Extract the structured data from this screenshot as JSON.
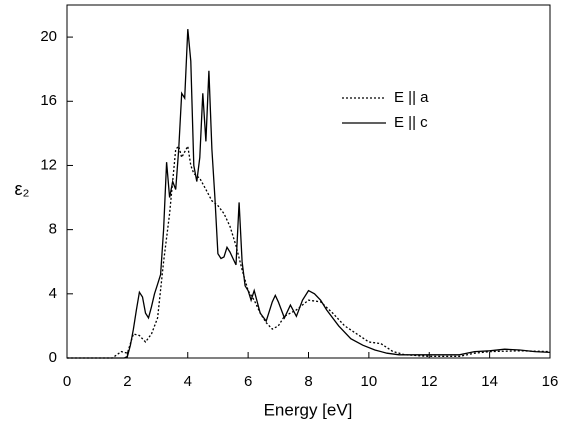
{
  "chart_data": {
    "type": "line",
    "x_label": "Energy [eV]",
    "y_label": "ε₂",
    "xlim": [
      0,
      16
    ],
    "ylim": [
      0,
      22
    ],
    "xticks": [
      0,
      2,
      4,
      6,
      8,
      10,
      12,
      14,
      16
    ],
    "yticks": [
      0,
      4,
      8,
      12,
      16,
      20
    ],
    "legend": "upper right",
    "series": [
      {
        "name": "E || a",
        "color": "#000000",
        "dash": "dotted",
        "x": [
          0,
          1.5,
          1.8,
          2.0,
          2.2,
          2.4,
          2.6,
          2.8,
          3.0,
          3.2,
          3.4,
          3.6,
          3.7,
          3.8,
          4.0,
          4.1,
          4.2,
          4.4,
          4.6,
          4.8,
          5.0,
          5.2,
          5.4,
          5.6,
          5.8,
          6.0,
          6.2,
          6.4,
          6.6,
          6.8,
          7.0,
          7.2,
          7.6,
          8.0,
          8.4,
          8.8,
          9.2,
          9.6,
          10.0,
          10.4,
          10.8,
          11.2,
          12,
          13,
          13.5,
          14,
          15,
          16
        ],
        "values": [
          0,
          0,
          0.4,
          0.3,
          1.5,
          1.4,
          1.0,
          1.5,
          2.5,
          6,
          9,
          13,
          13.2,
          12.5,
          13.2,
          12,
          11.5,
          11.2,
          10.5,
          9.8,
          9.5,
          9,
          8.2,
          7,
          5.5,
          4.2,
          3.6,
          2.8,
          2.2,
          1.8,
          2,
          2.6,
          3,
          3.6,
          3.5,
          2.8,
          2,
          1.5,
          1.0,
          0.9,
          0.4,
          0.2,
          0.1,
          0.1,
          0.3,
          0.4,
          0.45,
          0.4
        ]
      },
      {
        "name": "E || c",
        "color": "#000000",
        "dash": "solid",
        "x": [
          0,
          1.9,
          2.0,
          2.1,
          2.2,
          2.3,
          2.4,
          2.5,
          2.6,
          2.7,
          2.8,
          2.9,
          3.0,
          3.1,
          3.2,
          3.3,
          3.4,
          3.5,
          3.6,
          3.7,
          3.8,
          3.9,
          4.0,
          4.1,
          4.2,
          4.3,
          4.4,
          4.5,
          4.6,
          4.7,
          4.8,
          4.9,
          5.0,
          5.1,
          5.2,
          5.3,
          5.4,
          5.5,
          5.6,
          5.7,
          5.8,
          5.9,
          6.0,
          6.1,
          6.2,
          6.4,
          6.6,
          6.8,
          6.9,
          7.0,
          7.2,
          7.4,
          7.6,
          7.8,
          8.0,
          8.2,
          8.4,
          8.6,
          9.0,
          9.4,
          9.8,
          10.2,
          10.6,
          11,
          12,
          13,
          13.5,
          14,
          14.5,
          15,
          15.5,
          16
        ],
        "values": [
          0,
          0,
          0.1,
          0.8,
          1.8,
          3,
          4.1,
          3.8,
          2.8,
          2.5,
          3.2,
          4,
          4.6,
          5.2,
          8,
          12.2,
          10,
          11,
          10.5,
          13,
          16.5,
          16.2,
          20.5,
          18.5,
          12,
          11,
          12.5,
          16.5,
          13.5,
          17.9,
          13,
          10,
          6.5,
          6.2,
          6.3,
          6.9,
          6.6,
          6.2,
          5.8,
          9.7,
          6,
          4.5,
          4.2,
          3.6,
          4.2,
          2.8,
          2.3,
          3.5,
          3.9,
          3.5,
          2.5,
          3.3,
          2.6,
          3.6,
          4.2,
          4,
          3.6,
          3,
          2,
          1.2,
          0.8,
          0.5,
          0.3,
          0.2,
          0.2,
          0.2,
          0.4,
          0.45,
          0.55,
          0.5,
          0.4,
          0.35
        ]
      }
    ]
  }
}
